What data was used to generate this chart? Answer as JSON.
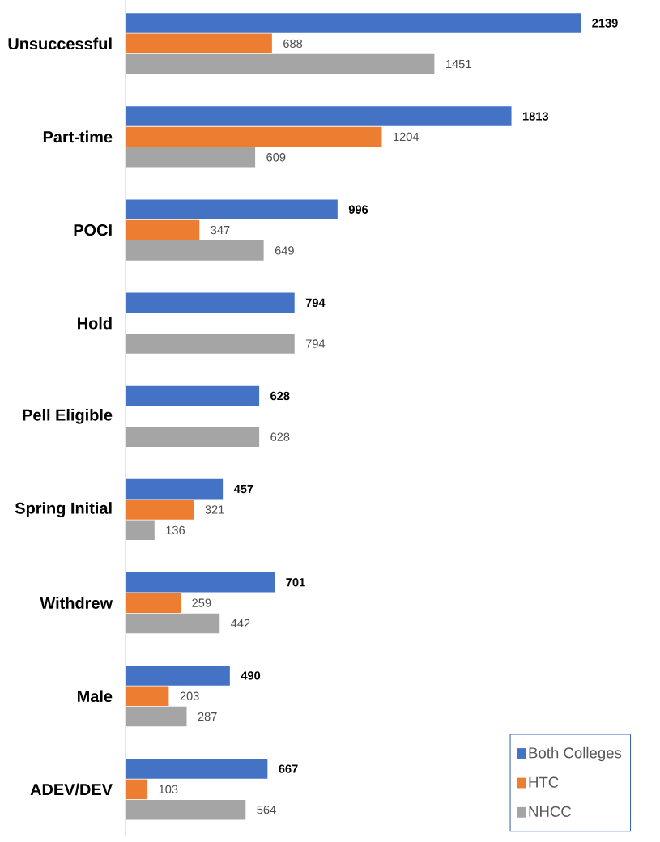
{
  "chart_data": {
    "type": "bar",
    "orientation": "horizontal",
    "categories": [
      "Unsuccessful",
      "Part-time",
      "POCI",
      "Hold",
      "Pell Eligible",
      "Spring Initial",
      "Withdrew",
      "Male",
      "ADEV/DEV"
    ],
    "series": [
      {
        "name": "Both Colleges",
        "color": "#4472c4",
        "values": [
          2139,
          1813,
          996,
          794,
          628,
          457,
          701,
          490,
          667
        ]
      },
      {
        "name": "HTC",
        "color": "#ed7d31",
        "values": [
          688,
          1204,
          347,
          null,
          null,
          321,
          259,
          203,
          103
        ]
      },
      {
        "name": "NHCC",
        "color": "#a5a5a5",
        "values": [
          1451,
          609,
          649,
          794,
          628,
          136,
          442,
          287,
          564
        ]
      }
    ],
    "data_labels": true,
    "legend": "bottom right"
  }
}
